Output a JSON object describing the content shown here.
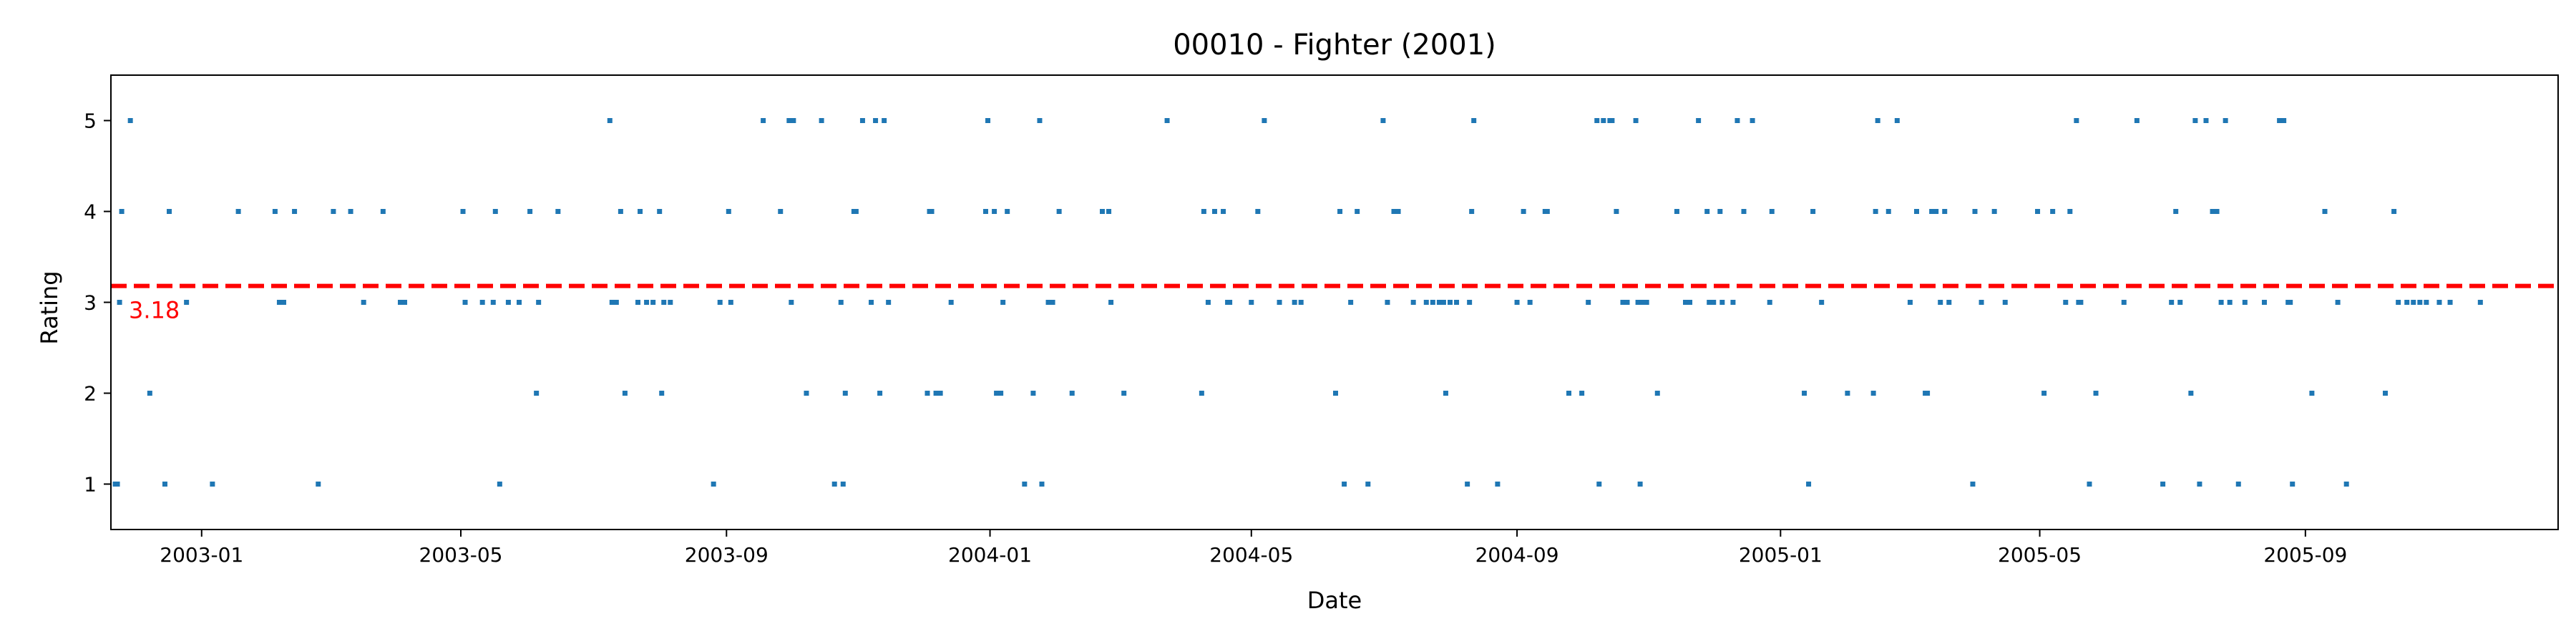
{
  "chart_data": {
    "type": "scatter",
    "title": "00010 - Fighter (2001)",
    "xlabel": "Date",
    "ylabel": "Rating",
    "xlim": [
      "2002-11-20",
      "2005-12-27"
    ],
    "ylim": [
      0.5,
      5.5
    ],
    "x_ticks": [
      "2003-01",
      "2003-05",
      "2003-09",
      "2004-01",
      "2004-05",
      "2004-09",
      "2005-01",
      "2005-05",
      "2005-09"
    ],
    "y_ticks": [
      1,
      2,
      3,
      4,
      5
    ],
    "grid": false,
    "series_color": "#1f77b4",
    "mean": {
      "value": 3.18,
      "label": "3.18",
      "color": "#ff0000",
      "style": "dashed"
    },
    "points": [
      {
        "x": "2002-11-22",
        "y": 1
      },
      {
        "x": "2002-11-23",
        "y": 1
      },
      {
        "x": "2002-11-24",
        "y": 3
      },
      {
        "x": "2002-11-25",
        "y": 4
      },
      {
        "x": "2002-11-29",
        "y": 5
      },
      {
        "x": "2002-12-08",
        "y": 2
      },
      {
        "x": "2002-12-15",
        "y": 1
      },
      {
        "x": "2002-12-17",
        "y": 4
      },
      {
        "x": "2002-12-25",
        "y": 3
      },
      {
        "x": "2003-01-06",
        "y": 1
      },
      {
        "x": "2003-01-18",
        "y": 4
      },
      {
        "x": "2003-02-04",
        "y": 4
      },
      {
        "x": "2003-02-06",
        "y": 3
      },
      {
        "x": "2003-02-08",
        "y": 3
      },
      {
        "x": "2003-02-13",
        "y": 4
      },
      {
        "x": "2003-02-24",
        "y": 1
      },
      {
        "x": "2003-03-03",
        "y": 4
      },
      {
        "x": "2003-03-11",
        "y": 4
      },
      {
        "x": "2003-03-17",
        "y": 3
      },
      {
        "x": "2003-03-26",
        "y": 4
      },
      {
        "x": "2003-04-03",
        "y": 3
      },
      {
        "x": "2003-04-05",
        "y": 3
      },
      {
        "x": "2003-05-02",
        "y": 4
      },
      {
        "x": "2003-05-03",
        "y": 3
      },
      {
        "x": "2003-05-11",
        "y": 3
      },
      {
        "x": "2003-05-16",
        "y": 3
      },
      {
        "x": "2003-05-17",
        "y": 4
      },
      {
        "x": "2003-05-19",
        "y": 1
      },
      {
        "x": "2003-05-23",
        "y": 3
      },
      {
        "x": "2003-05-28",
        "y": 3
      },
      {
        "x": "2003-06-02",
        "y": 4
      },
      {
        "x": "2003-06-05",
        "y": 2
      },
      {
        "x": "2003-06-06",
        "y": 3
      },
      {
        "x": "2003-06-15",
        "y": 4
      },
      {
        "x": "2003-07-09",
        "y": 5
      },
      {
        "x": "2003-07-10",
        "y": 3
      },
      {
        "x": "2003-07-12",
        "y": 3
      },
      {
        "x": "2003-07-14",
        "y": 4
      },
      {
        "x": "2003-07-16",
        "y": 2
      },
      {
        "x": "2003-07-22",
        "y": 3
      },
      {
        "x": "2003-07-23",
        "y": 4
      },
      {
        "x": "2003-07-26",
        "y": 3
      },
      {
        "x": "2003-07-29",
        "y": 3
      },
      {
        "x": "2003-08-01",
        "y": 4
      },
      {
        "x": "2003-08-02",
        "y": 2
      },
      {
        "x": "2003-08-03",
        "y": 3
      },
      {
        "x": "2003-08-06",
        "y": 3
      },
      {
        "x": "2003-08-26",
        "y": 1
      },
      {
        "x": "2003-08-29",
        "y": 3
      },
      {
        "x": "2003-09-02",
        "y": 4
      },
      {
        "x": "2003-09-03",
        "y": 3
      },
      {
        "x": "2003-09-18",
        "y": 5
      },
      {
        "x": "2003-09-26",
        "y": 4
      },
      {
        "x": "2003-09-30",
        "y": 5
      },
      {
        "x": "2003-10-01",
        "y": 3
      },
      {
        "x": "2003-10-02",
        "y": 5
      },
      {
        "x": "2003-10-08",
        "y": 2
      },
      {
        "x": "2003-10-15",
        "y": 5
      },
      {
        "x": "2003-10-21",
        "y": 1
      },
      {
        "x": "2003-10-24",
        "y": 3
      },
      {
        "x": "2003-10-25",
        "y": 1
      },
      {
        "x": "2003-10-26",
        "y": 2
      },
      {
        "x": "2003-10-30",
        "y": 4
      },
      {
        "x": "2003-10-31",
        "y": 4
      },
      {
        "x": "2003-11-03",
        "y": 5
      },
      {
        "x": "2003-11-07",
        "y": 3
      },
      {
        "x": "2003-11-09",
        "y": 5
      },
      {
        "x": "2003-11-11",
        "y": 2
      },
      {
        "x": "2003-11-13",
        "y": 5
      },
      {
        "x": "2003-11-15",
        "y": 3
      },
      {
        "x": "2003-12-03",
        "y": 2
      },
      {
        "x": "2003-12-04",
        "y": 4
      },
      {
        "x": "2003-12-05",
        "y": 4
      },
      {
        "x": "2003-12-07",
        "y": 2
      },
      {
        "x": "2003-12-09",
        "y": 2
      },
      {
        "x": "2003-12-14",
        "y": 3
      },
      {
        "x": "2003-12-30",
        "y": 4
      },
      {
        "x": "2003-12-31",
        "y": 5
      },
      {
        "x": "2004-01-03",
        "y": 4
      },
      {
        "x": "2004-01-04",
        "y": 2
      },
      {
        "x": "2004-01-06",
        "y": 2
      },
      {
        "x": "2004-01-07",
        "y": 3
      },
      {
        "x": "2004-01-09",
        "y": 4
      },
      {
        "x": "2004-01-17",
        "y": 1
      },
      {
        "x": "2004-01-21",
        "y": 2
      },
      {
        "x": "2004-01-24",
        "y": 5
      },
      {
        "x": "2004-01-25",
        "y": 1
      },
      {
        "x": "2004-01-28",
        "y": 3
      },
      {
        "x": "2004-01-30",
        "y": 3
      },
      {
        "x": "2004-02-02",
        "y": 4
      },
      {
        "x": "2004-02-08",
        "y": 2
      },
      {
        "x": "2004-02-22",
        "y": 4
      },
      {
        "x": "2004-02-25",
        "y": 4
      },
      {
        "x": "2004-02-26",
        "y": 3
      },
      {
        "x": "2004-03-03",
        "y": 2
      },
      {
        "x": "2004-03-23",
        "y": 5
      },
      {
        "x": "2004-04-08",
        "y": 2
      },
      {
        "x": "2004-04-09",
        "y": 4
      },
      {
        "x": "2004-04-11",
        "y": 3
      },
      {
        "x": "2004-04-14",
        "y": 4
      },
      {
        "x": "2004-04-18",
        "y": 4
      },
      {
        "x": "2004-04-20",
        "y": 3
      },
      {
        "x": "2004-04-21",
        "y": 3
      },
      {
        "x": "2004-05-01",
        "y": 3
      },
      {
        "x": "2004-05-04",
        "y": 4
      },
      {
        "x": "2004-05-07",
        "y": 5
      },
      {
        "x": "2004-05-14",
        "y": 3
      },
      {
        "x": "2004-05-21",
        "y": 3
      },
      {
        "x": "2004-05-24",
        "y": 3
      },
      {
        "x": "2004-06-09",
        "y": 2
      },
      {
        "x": "2004-06-11",
        "y": 4
      },
      {
        "x": "2004-06-13",
        "y": 1
      },
      {
        "x": "2004-06-16",
        "y": 3
      },
      {
        "x": "2004-06-19",
        "y": 4
      },
      {
        "x": "2004-06-24",
        "y": 1
      },
      {
        "x": "2004-07-01",
        "y": 5
      },
      {
        "x": "2004-07-03",
        "y": 3
      },
      {
        "x": "2004-07-06",
        "y": 4
      },
      {
        "x": "2004-07-08",
        "y": 4
      },
      {
        "x": "2004-07-15",
        "y": 3
      },
      {
        "x": "2004-07-21",
        "y": 3
      },
      {
        "x": "2004-07-24",
        "y": 3
      },
      {
        "x": "2004-07-27",
        "y": 3
      },
      {
        "x": "2004-07-29",
        "y": 3
      },
      {
        "x": "2004-07-30",
        "y": 2
      },
      {
        "x": "2004-08-01",
        "y": 3
      },
      {
        "x": "2004-08-04",
        "y": 3
      },
      {
        "x": "2004-08-09",
        "y": 1
      },
      {
        "x": "2004-08-10",
        "y": 3
      },
      {
        "x": "2004-08-11",
        "y": 4
      },
      {
        "x": "2004-08-12",
        "y": 5
      },
      {
        "x": "2004-08-23",
        "y": 1
      },
      {
        "x": "2004-09-01",
        "y": 3
      },
      {
        "x": "2004-09-04",
        "y": 4
      },
      {
        "x": "2004-09-07",
        "y": 3
      },
      {
        "x": "2004-09-14",
        "y": 4
      },
      {
        "x": "2004-09-15",
        "y": 4
      },
      {
        "x": "2004-09-25",
        "y": 2
      },
      {
        "x": "2004-10-01",
        "y": 2
      },
      {
        "x": "2004-10-04",
        "y": 3
      },
      {
        "x": "2004-10-08",
        "y": 5
      },
      {
        "x": "2004-10-09",
        "y": 1
      },
      {
        "x": "2004-10-11",
        "y": 5
      },
      {
        "x": "2004-10-14",
        "y": 5
      },
      {
        "x": "2004-10-15",
        "y": 5
      },
      {
        "x": "2004-10-17",
        "y": 4
      },
      {
        "x": "2004-10-20",
        "y": 3
      },
      {
        "x": "2004-10-22",
        "y": 3
      },
      {
        "x": "2004-10-26",
        "y": 5
      },
      {
        "x": "2004-10-27",
        "y": 3
      },
      {
        "x": "2004-10-28",
        "y": 1
      },
      {
        "x": "2004-10-29",
        "y": 3
      },
      {
        "x": "2004-10-31",
        "y": 3
      },
      {
        "x": "2004-11-05",
        "y": 2
      },
      {
        "x": "2004-11-14",
        "y": 4
      },
      {
        "x": "2004-11-18",
        "y": 3
      },
      {
        "x": "2004-11-20",
        "y": 3
      },
      {
        "x": "2004-11-24",
        "y": 5
      },
      {
        "x": "2004-11-28",
        "y": 4
      },
      {
        "x": "2004-11-29",
        "y": 3
      },
      {
        "x": "2004-12-01",
        "y": 3
      },
      {
        "x": "2004-12-04",
        "y": 4
      },
      {
        "x": "2004-12-05",
        "y": 3
      },
      {
        "x": "2004-12-10",
        "y": 3
      },
      {
        "x": "2004-12-12",
        "y": 5
      },
      {
        "x": "2004-12-15",
        "y": 4
      },
      {
        "x": "2004-12-19",
        "y": 5
      },
      {
        "x": "2004-12-27",
        "y": 3
      },
      {
        "x": "2004-12-28",
        "y": 4
      },
      {
        "x": "2005-01-12",
        "y": 2
      },
      {
        "x": "2005-01-14",
        "y": 1
      },
      {
        "x": "2005-01-16",
        "y": 4
      },
      {
        "x": "2005-01-20",
        "y": 3
      },
      {
        "x": "2005-02-01",
        "y": 2
      },
      {
        "x": "2005-02-13",
        "y": 2
      },
      {
        "x": "2005-02-14",
        "y": 4
      },
      {
        "x": "2005-02-15",
        "y": 5
      },
      {
        "x": "2005-02-20",
        "y": 4
      },
      {
        "x": "2005-02-24",
        "y": 5
      },
      {
        "x": "2005-03-02",
        "y": 3
      },
      {
        "x": "2005-03-05",
        "y": 4
      },
      {
        "x": "2005-03-09",
        "y": 2
      },
      {
        "x": "2005-03-10",
        "y": 2
      },
      {
        "x": "2005-03-12",
        "y": 4
      },
      {
        "x": "2005-03-14",
        "y": 4
      },
      {
        "x": "2005-03-16",
        "y": 3
      },
      {
        "x": "2005-03-18",
        "y": 4
      },
      {
        "x": "2005-03-20",
        "y": 3
      },
      {
        "x": "2005-03-31",
        "y": 1
      },
      {
        "x": "2005-04-01",
        "y": 4
      },
      {
        "x": "2005-04-04",
        "y": 3
      },
      {
        "x": "2005-04-10",
        "y": 4
      },
      {
        "x": "2005-04-15",
        "y": 3
      },
      {
        "x": "2005-04-30",
        "y": 4
      },
      {
        "x": "2005-05-03",
        "y": 2
      },
      {
        "x": "2005-05-07",
        "y": 4
      },
      {
        "x": "2005-05-13",
        "y": 3
      },
      {
        "x": "2005-05-15",
        "y": 4
      },
      {
        "x": "2005-05-18",
        "y": 5
      },
      {
        "x": "2005-05-19",
        "y": 3
      },
      {
        "x": "2005-05-20",
        "y": 3
      },
      {
        "x": "2005-05-24",
        "y": 1
      },
      {
        "x": "2005-05-27",
        "y": 2
      },
      {
        "x": "2005-06-09",
        "y": 3
      },
      {
        "x": "2005-06-15",
        "y": 5
      },
      {
        "x": "2005-06-27",
        "y": 1
      },
      {
        "x": "2005-07-01",
        "y": 3
      },
      {
        "x": "2005-07-03",
        "y": 4
      },
      {
        "x": "2005-07-05",
        "y": 3
      },
      {
        "x": "2005-07-10",
        "y": 2
      },
      {
        "x": "2005-07-12",
        "y": 5
      },
      {
        "x": "2005-07-14",
        "y": 1
      },
      {
        "x": "2005-07-17",
        "y": 5
      },
      {
        "x": "2005-07-20",
        "y": 4
      },
      {
        "x": "2005-07-22",
        "y": 4
      },
      {
        "x": "2005-07-24",
        "y": 3
      },
      {
        "x": "2005-07-26",
        "y": 5
      },
      {
        "x": "2005-07-28",
        "y": 3
      },
      {
        "x": "2005-08-01",
        "y": 1
      },
      {
        "x": "2005-08-04",
        "y": 3
      },
      {
        "x": "2005-08-13",
        "y": 3
      },
      {
        "x": "2005-08-20",
        "y": 5
      },
      {
        "x": "2005-08-22",
        "y": 5
      },
      {
        "x": "2005-08-24",
        "y": 3
      },
      {
        "x": "2005-08-25",
        "y": 3
      },
      {
        "x": "2005-08-26",
        "y": 1
      },
      {
        "x": "2005-09-04",
        "y": 2
      },
      {
        "x": "2005-09-10",
        "y": 4
      },
      {
        "x": "2005-09-16",
        "y": 3
      },
      {
        "x": "2005-09-20",
        "y": 1
      },
      {
        "x": "2005-10-08",
        "y": 2
      },
      {
        "x": "2005-10-12",
        "y": 4
      },
      {
        "x": "2005-10-14",
        "y": 3
      },
      {
        "x": "2005-10-18",
        "y": 3
      },
      {
        "x": "2005-10-21",
        "y": 3
      },
      {
        "x": "2005-10-24",
        "y": 3
      },
      {
        "x": "2005-10-27",
        "y": 3
      },
      {
        "x": "2005-11-02",
        "y": 3
      },
      {
        "x": "2005-11-07",
        "y": 3
      },
      {
        "x": "2005-11-21",
        "y": 3
      }
    ]
  }
}
